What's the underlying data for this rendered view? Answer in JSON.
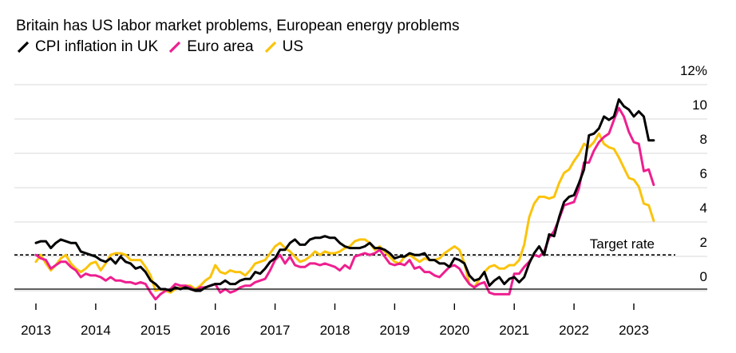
{
  "title": "Britain has US labor market problems, European energy problems",
  "legend": [
    {
      "name": "CPI inflation in UK",
      "color": "#000000"
    },
    {
      "name": "Euro area",
      "color": "#ee1f8f"
    },
    {
      "name": "US",
      "color": "#fbc30b"
    }
  ],
  "chart_data": {
    "type": "line",
    "title": "Britain has US labor market problems, European energy problems",
    "xlabel": "",
    "ylabel": "",
    "x_ticks": [
      "2013",
      "2014",
      "2015",
      "2016",
      "2017",
      "2018",
      "2019",
      "2020",
      "2021",
      "2022",
      "2023"
    ],
    "y_ticks": [
      "12%",
      "10",
      "8",
      "6",
      "4",
      "2",
      "0"
    ],
    "xlim": [
      2013,
      2023.75
    ],
    "ylim": [
      -1.2,
      12.5
    ],
    "grid": true,
    "legend_position": "top-left",
    "target_rate": {
      "value": 2,
      "label": "Target rate"
    },
    "series": [
      {
        "name": "CPI inflation in UK",
        "color": "#000000",
        "x": [
          2013.0,
          2013.083,
          2013.167,
          2013.25,
          2013.333,
          2013.417,
          2013.5,
          2013.583,
          2013.667,
          2013.75,
          2013.833,
          2013.917,
          2014.0,
          2014.083,
          2014.167,
          2014.25,
          2014.333,
          2014.417,
          2014.5,
          2014.583,
          2014.667,
          2014.75,
          2014.833,
          2014.917,
          2015.0,
          2015.083,
          2015.167,
          2015.25,
          2015.333,
          2015.417,
          2015.5,
          2015.583,
          2015.667,
          2015.75,
          2015.833,
          2015.917,
          2016.0,
          2016.083,
          2016.167,
          2016.25,
          2016.333,
          2016.417,
          2016.5,
          2016.583,
          2016.667,
          2016.75,
          2016.833,
          2016.917,
          2017.0,
          2017.083,
          2017.167,
          2017.25,
          2017.333,
          2017.417,
          2017.5,
          2017.583,
          2017.667,
          2017.75,
          2017.833,
          2017.917,
          2018.0,
          2018.083,
          2018.167,
          2018.25,
          2018.333,
          2018.417,
          2018.5,
          2018.583,
          2018.667,
          2018.75,
          2018.833,
          2018.917,
          2019.0,
          2019.083,
          2019.167,
          2019.25,
          2019.333,
          2019.417,
          2019.5,
          2019.583,
          2019.667,
          2019.75,
          2019.833,
          2019.917,
          2020.0,
          2020.083,
          2020.167,
          2020.25,
          2020.333,
          2020.417,
          2020.5,
          2020.583,
          2020.667,
          2020.75,
          2020.833,
          2020.917,
          2021.0,
          2021.083,
          2021.167,
          2021.25,
          2021.333,
          2021.417,
          2021.5,
          2021.583,
          2021.667,
          2021.75,
          2021.833,
          2021.917,
          2022.0,
          2022.083,
          2022.167,
          2022.25,
          2022.333,
          2022.417,
          2022.5,
          2022.583,
          2022.667,
          2022.75,
          2022.833,
          2022.917,
          2023.0,
          2023.083,
          2023.167,
          2023.25,
          2023.333
        ],
        "values": [
          2.7,
          2.8,
          2.8,
          2.4,
          2.7,
          2.9,
          2.8,
          2.7,
          2.7,
          2.2,
          2.1,
          2.0,
          1.9,
          1.7,
          1.6,
          1.8,
          1.5,
          1.9,
          1.6,
          1.5,
          1.2,
          1.3,
          1.0,
          0.5,
          0.3,
          0.0,
          0.0,
          -0.1,
          0.1,
          0.0,
          0.1,
          0.0,
          -0.1,
          -0.1,
          0.1,
          0.2,
          0.3,
          0.3,
          0.5,
          0.3,
          0.3,
          0.5,
          0.6,
          0.6,
          1.0,
          0.9,
          1.2,
          1.6,
          1.8,
          2.3,
          2.3,
          2.7,
          2.9,
          2.6,
          2.6,
          2.9,
          3.0,
          3.0,
          3.1,
          3.0,
          3.0,
          2.7,
          2.5,
          2.4,
          2.4,
          2.4,
          2.5,
          2.7,
          2.4,
          2.4,
          2.3,
          2.1,
          1.8,
          1.9,
          1.9,
          2.1,
          2.0,
          2.0,
          2.1,
          1.7,
          1.7,
          1.5,
          1.5,
          1.3,
          1.8,
          1.7,
          1.5,
          0.8,
          0.5,
          0.6,
          1.0,
          0.2,
          0.5,
          0.7,
          0.3,
          0.6,
          0.7,
          0.4,
          0.7,
          1.5,
          2.1,
          2.5,
          2.0,
          3.2,
          3.1,
          4.2,
          5.1,
          5.4,
          5.5,
          6.2,
          7.0,
          9.0,
          9.1,
          9.4,
          10.1,
          9.9,
          10.1,
          11.1,
          10.7,
          10.5,
          10.1,
          10.4,
          10.1,
          8.7,
          8.7
        ]
      },
      {
        "name": "Euro area",
        "color": "#ee1f8f",
        "x": [
          2013.0,
          2013.083,
          2013.167,
          2013.25,
          2013.333,
          2013.417,
          2013.5,
          2013.583,
          2013.667,
          2013.75,
          2013.833,
          2013.917,
          2014.0,
          2014.083,
          2014.167,
          2014.25,
          2014.333,
          2014.417,
          2014.5,
          2014.583,
          2014.667,
          2014.75,
          2014.833,
          2014.917,
          2015.0,
          2015.083,
          2015.167,
          2015.25,
          2015.333,
          2015.417,
          2015.5,
          2015.583,
          2015.667,
          2015.75,
          2015.833,
          2015.917,
          2016.0,
          2016.083,
          2016.167,
          2016.25,
          2016.333,
          2016.417,
          2016.5,
          2016.583,
          2016.667,
          2016.75,
          2016.833,
          2016.917,
          2017.0,
          2017.083,
          2017.167,
          2017.25,
          2017.333,
          2017.417,
          2017.5,
          2017.583,
          2017.667,
          2017.75,
          2017.833,
          2017.917,
          2018.0,
          2018.083,
          2018.167,
          2018.25,
          2018.333,
          2018.417,
          2018.5,
          2018.583,
          2018.667,
          2018.75,
          2018.833,
          2018.917,
          2019.0,
          2019.083,
          2019.167,
          2019.25,
          2019.333,
          2019.417,
          2019.5,
          2019.583,
          2019.667,
          2019.75,
          2019.833,
          2019.917,
          2020.0,
          2020.083,
          2020.167,
          2020.25,
          2020.333,
          2020.417,
          2020.5,
          2020.583,
          2020.667,
          2020.75,
          2020.833,
          2020.917,
          2021.0,
          2021.083,
          2021.167,
          2021.25,
          2021.333,
          2021.417,
          2021.5,
          2021.583,
          2021.667,
          2021.75,
          2021.833,
          2021.917,
          2022.0,
          2022.083,
          2022.167,
          2022.25,
          2022.333,
          2022.417,
          2022.5,
          2022.583,
          2022.667,
          2022.75,
          2022.833,
          2022.917,
          2023.0,
          2023.083,
          2023.167,
          2023.25,
          2023.333
        ],
        "values": [
          2.0,
          1.8,
          1.7,
          1.2,
          1.4,
          1.6,
          1.6,
          1.3,
          1.1,
          0.7,
          0.9,
          0.8,
          0.8,
          0.7,
          0.5,
          0.7,
          0.5,
          0.5,
          0.4,
          0.4,
          0.3,
          0.4,
          0.3,
          -0.2,
          -0.6,
          -0.3,
          -0.1,
          0.0,
          0.3,
          0.2,
          0.2,
          0.1,
          -0.1,
          0.1,
          0.1,
          0.2,
          0.3,
          -0.2,
          0.0,
          -0.2,
          -0.1,
          0.1,
          0.2,
          0.2,
          0.4,
          0.5,
          0.6,
          1.1,
          1.7,
          2.0,
          1.5,
          1.9,
          1.4,
          1.3,
          1.3,
          1.5,
          1.5,
          1.4,
          1.5,
          1.4,
          1.3,
          1.1,
          1.4,
          1.2,
          1.9,
          2.0,
          2.1,
          2.0,
          2.1,
          2.3,
          1.9,
          1.5,
          1.4,
          1.5,
          1.4,
          1.7,
          1.2,
          1.3,
          1.0,
          1.0,
          0.8,
          0.7,
          1.0,
          1.3,
          1.4,
          1.2,
          0.7,
          0.3,
          0.1,
          0.3,
          0.4,
          -0.2,
          -0.3,
          -0.3,
          -0.3,
          -0.3,
          0.9,
          0.9,
          1.3,
          1.6,
          2.0,
          1.9,
          2.2,
          3.0,
          3.4,
          4.1,
          4.9,
          5.0,
          5.1,
          5.9,
          7.4,
          7.4,
          8.1,
          8.6,
          8.9,
          9.1,
          9.9,
          10.6,
          10.1,
          9.2,
          8.6,
          8.5,
          6.9,
          7.0,
          6.1
        ]
      },
      {
        "name": "US",
        "color": "#fbc30b",
        "x": [
          2013.0,
          2013.083,
          2013.167,
          2013.25,
          2013.333,
          2013.417,
          2013.5,
          2013.583,
          2013.667,
          2013.75,
          2013.833,
          2013.917,
          2014.0,
          2014.083,
          2014.167,
          2014.25,
          2014.333,
          2014.417,
          2014.5,
          2014.583,
          2014.667,
          2014.75,
          2014.833,
          2014.917,
          2015.0,
          2015.083,
          2015.167,
          2015.25,
          2015.333,
          2015.417,
          2015.5,
          2015.583,
          2015.667,
          2015.75,
          2015.833,
          2015.917,
          2016.0,
          2016.083,
          2016.167,
          2016.25,
          2016.333,
          2016.417,
          2016.5,
          2016.583,
          2016.667,
          2016.75,
          2016.833,
          2016.917,
          2017.0,
          2017.083,
          2017.167,
          2017.25,
          2017.333,
          2017.417,
          2017.5,
          2017.583,
          2017.667,
          2017.75,
          2017.833,
          2017.917,
          2018.0,
          2018.083,
          2018.167,
          2018.25,
          2018.333,
          2018.417,
          2018.5,
          2018.583,
          2018.667,
          2018.75,
          2018.833,
          2018.917,
          2019.0,
          2019.083,
          2019.167,
          2019.25,
          2019.333,
          2019.417,
          2019.5,
          2019.583,
          2019.667,
          2019.75,
          2019.833,
          2019.917,
          2020.0,
          2020.083,
          2020.167,
          2020.25,
          2020.333,
          2020.417,
          2020.5,
          2020.583,
          2020.667,
          2020.75,
          2020.833,
          2020.917,
          2021.0,
          2021.083,
          2021.167,
          2021.25,
          2021.333,
          2021.417,
          2021.5,
          2021.583,
          2021.667,
          2021.75,
          2021.833,
          2021.917,
          2022.0,
          2022.083,
          2022.167,
          2022.25,
          2022.333,
          2022.417,
          2022.5,
          2022.583,
          2022.667,
          2022.75,
          2022.833,
          2022.917,
          2023.0,
          2023.083,
          2023.167,
          2023.25,
          2023.333
        ],
        "values": [
          1.6,
          2.0,
          1.5,
          1.1,
          1.4,
          1.8,
          2.0,
          1.5,
          1.2,
          1.0,
          1.2,
          1.5,
          1.6,
          1.1,
          1.5,
          2.0,
          2.1,
          2.1,
          2.0,
          1.7,
          1.7,
          1.7,
          1.3,
          0.8,
          -0.1,
          0.0,
          -0.1,
          -0.2,
          0.0,
          0.1,
          0.2,
          0.2,
          0.0,
          0.2,
          0.5,
          0.7,
          1.4,
          1.0,
          0.9,
          1.1,
          1.0,
          1.0,
          0.8,
          1.1,
          1.5,
          1.6,
          1.7,
          2.1,
          2.5,
          2.7,
          2.4,
          2.2,
          1.9,
          1.6,
          1.7,
          1.9,
          2.2,
          2.0,
          2.2,
          2.1,
          2.1,
          2.2,
          2.4,
          2.5,
          2.8,
          2.9,
          2.9,
          2.7,
          2.3,
          2.5,
          2.2,
          1.9,
          1.6,
          1.5,
          1.9,
          2.0,
          1.8,
          1.6,
          1.8,
          1.7,
          1.7,
          1.8,
          2.1,
          2.3,
          2.5,
          2.3,
          1.5,
          0.3,
          0.1,
          0.6,
          1.0,
          1.3,
          1.4,
          1.2,
          1.2,
          1.4,
          1.4,
          1.7,
          2.6,
          4.2,
          5.0,
          5.4,
          5.4,
          5.3,
          5.4,
          6.2,
          6.8,
          7.0,
          7.5,
          7.9,
          8.5,
          8.3,
          8.6,
          9.1,
          8.5,
          8.3,
          8.2,
          7.7,
          7.1,
          6.5,
          6.4,
          6.0,
          5.0,
          4.9,
          4.0
        ]
      }
    ]
  }
}
